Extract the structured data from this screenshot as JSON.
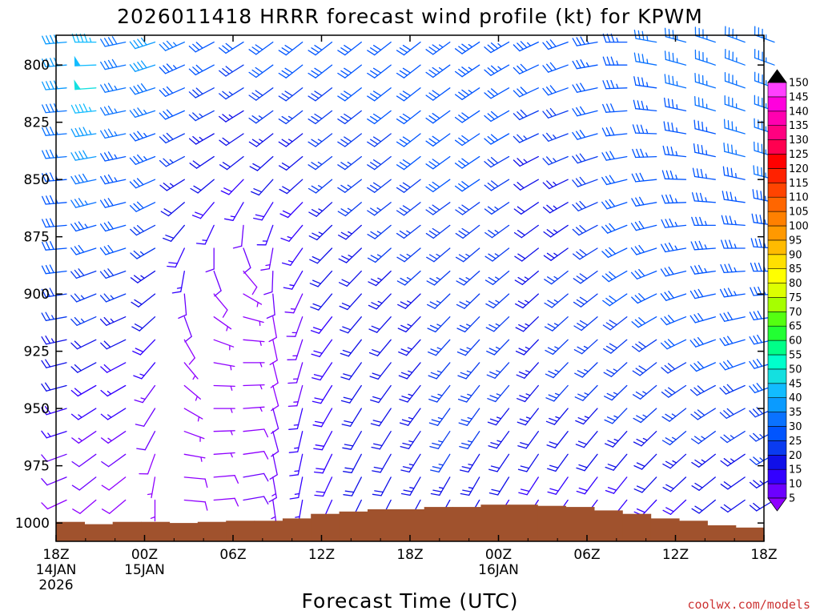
{
  "chart_data": {
    "type": "wind_barb_profile",
    "title": "2026011418 HRRR forecast wind profile (kt) for KPWM",
    "xlabel": "Forecast Time (UTC)",
    "ylabel": "",
    "credit": "coolwx.com/models",
    "y_axis": {
      "inverted": true,
      "range": [
        1008,
        787
      ],
      "ticks": [
        800,
        825,
        850,
        875,
        900,
        925,
        950,
        975,
        1000
      ],
      "tick_labels": [
        "800",
        "825",
        "850",
        "875",
        "900",
        "925",
        "950",
        "975",
        "1000"
      ]
    },
    "x_axis": {
      "range_hours": [
        0,
        48
      ],
      "ticks": [
        {
          "hour": 0,
          "lines": [
            "18Z",
            "14JAN",
            "2026"
          ]
        },
        {
          "hour": 6,
          "lines": [
            "00Z",
            "15JAN"
          ]
        },
        {
          "hour": 12,
          "lines": [
            "06Z"
          ]
        },
        {
          "hour": 18,
          "lines": [
            "12Z"
          ]
        },
        {
          "hour": 24,
          "lines": [
            "18Z"
          ]
        },
        {
          "hour": 30,
          "lines": [
            "00Z",
            "16JAN"
          ]
        },
        {
          "hour": 36,
          "lines": [
            "06Z"
          ]
        },
        {
          "hour": 42,
          "lines": [
            "12Z"
          ]
        },
        {
          "hour": 48,
          "lines": [
            "18Z"
          ]
        }
      ]
    },
    "colorbar": {
      "levels": [
        5,
        10,
        15,
        20,
        25,
        30,
        35,
        40,
        45,
        50,
        55,
        60,
        65,
        70,
        75,
        80,
        85,
        90,
        95,
        100,
        105,
        110,
        115,
        120,
        125,
        130,
        135,
        140,
        145,
        150
      ],
      "colors": [
        "#8f00ff",
        "#6c00ff",
        "#3300ff",
        "#1010e8",
        "#0a3bf0",
        "#0055ff",
        "#0a72ff",
        "#0a9bff",
        "#12bcff",
        "#14e0e0",
        "#00ffcc",
        "#00ff88",
        "#22ff33",
        "#55ff11",
        "#a6ff00",
        "#ddff00",
        "#ffff00",
        "#ffe000",
        "#ffbb00",
        "#ff9900",
        "#ff8000",
        "#ff6600",
        "#ff4400",
        "#ff2200",
        "#ff0000",
        "#ff0050",
        "#ff0080",
        "#ff00b0",
        "#ff00dd",
        "#ff40ff"
      ]
    },
    "series": {
      "times_hours": [
        0,
        2,
        4,
        6,
        8,
        10,
        12,
        14,
        16,
        18,
        20,
        22,
        24,
        26,
        28,
        30,
        32,
        34,
        36,
        38,
        40,
        42,
        44,
        46,
        48
      ],
      "levels_hpa": [
        790,
        800,
        810,
        820,
        830,
        840,
        850,
        860,
        870,
        880,
        890,
        900,
        910,
        920,
        930,
        940,
        950,
        960,
        970,
        980,
        990
      ],
      "wind_speed_kt_by_time": [
        [
          42,
          42,
          40,
          38,
          36,
          35,
          34,
          33,
          32,
          31,
          30,
          28,
          26,
          24,
          22,
          20,
          18,
          15,
          12,
          10,
          8
        ],
        [
          46,
          48,
          50,
          47,
          44,
          41,
          38,
          35,
          33,
          31,
          29,
          27,
          25,
          22,
          20,
          18,
          16,
          14,
          12,
          10,
          8
        ],
        [
          38,
          38,
          37,
          36,
          35,
          34,
          33,
          32,
          31,
          30,
          28,
          26,
          23,
          21,
          19,
          17,
          15,
          13,
          11,
          9,
          8
        ],
        [
          40,
          40,
          38,
          36,
          34,
          33,
          32,
          30,
          28,
          26,
          24,
          22,
          20,
          18,
          16,
          14,
          12,
          10,
          8,
          7,
          6
        ],
        [
          35,
          34,
          32,
          30,
          28,
          26,
          24,
          22,
          20,
          18,
          15,
          12,
          10,
          8,
          7,
          6,
          6,
          6,
          7,
          8,
          9
        ],
        [
          32,
          30,
          28,
          26,
          24,
          22,
          20,
          18,
          15,
          12,
          10,
          8,
          7,
          6,
          6,
          5,
          5,
          6,
          7,
          8,
          9
        ],
        [
          30,
          28,
          26,
          24,
          22,
          20,
          18,
          15,
          12,
          10,
          8,
          7,
          6,
          6,
          6,
          6,
          7,
          8,
          9,
          10,
          10
        ],
        [
          31,
          30,
          28,
          26,
          24,
          22,
          20,
          18,
          16,
          14,
          12,
          10,
          9,
          8,
          8,
          9,
          10,
          11,
          12,
          13,
          14
        ],
        [
          30,
          30,
          28,
          26,
          24,
          22,
          20,
          18,
          17,
          16,
          15,
          14,
          13,
          13,
          13,
          14,
          15,
          16,
          16,
          16,
          16
        ],
        [
          30,
          30,
          29,
          28,
          27,
          26,
          25,
          24,
          23,
          22,
          21,
          20,
          19,
          18,
          18,
          18,
          18,
          18,
          18,
          18,
          18
        ],
        [
          31,
          30,
          30,
          29,
          28,
          27,
          26,
          25,
          24,
          23,
          22,
          21,
          20,
          20,
          20,
          20,
          20,
          20,
          20,
          20,
          20
        ],
        [
          31,
          31,
          30,
          30,
          29,
          28,
          28,
          27,
          26,
          25,
          24,
          23,
          22,
          22,
          22,
          22,
          22,
          22,
          22,
          22,
          22
        ],
        [
          32,
          32,
          31,
          31,
          30,
          30,
          29,
          28,
          27,
          26,
          25,
          24,
          24,
          24,
          24,
          24,
          24,
          24,
          24,
          24,
          24
        ],
        [
          33,
          33,
          32,
          32,
          31,
          31,
          30,
          29,
          28,
          27,
          26,
          25,
          25,
          25,
          25,
          25,
          25,
          25,
          25,
          24,
          24
        ],
        [
          34,
          34,
          33,
          32,
          31,
          31,
          30,
          29,
          28,
          27,
          26,
          25,
          25,
          25,
          25,
          25,
          25,
          25,
          24,
          23,
          22
        ],
        [
          34,
          33,
          32,
          31,
          30,
          29,
          28,
          27,
          26,
          25,
          25,
          25,
          25,
          25,
          25,
          25,
          24,
          23,
          22,
          20,
          18
        ],
        [
          33,
          32,
          30,
          28,
          26,
          24,
          22,
          22,
          22,
          22,
          23,
          24,
          24,
          24,
          24,
          24,
          23,
          22,
          20,
          18,
          16
        ],
        [
          32,
          31,
          30,
          28,
          26,
          25,
          24,
          24,
          24,
          24,
          25,
          25,
          25,
          25,
          25,
          25,
          24,
          22,
          20,
          18,
          16
        ],
        [
          33,
          33,
          32,
          31,
          30,
          29,
          28,
          28,
          28,
          28,
          28,
          28,
          28,
          27,
          26,
          25,
          24,
          22,
          20,
          18,
          16
        ],
        [
          34,
          34,
          33,
          32,
          32,
          31,
          31,
          30,
          30,
          30,
          30,
          30,
          29,
          28,
          27,
          26,
          25,
          23,
          21,
          19,
          17
        ],
        [
          35,
          35,
          34,
          34,
          33,
          33,
          32,
          32,
          32,
          32,
          31,
          31,
          30,
          29,
          28,
          27,
          26,
          24,
          22,
          20,
          18
        ],
        [
          35,
          35,
          35,
          34,
          34,
          34,
          33,
          33,
          33,
          33,
          32,
          32,
          31,
          30,
          29,
          28,
          27,
          25,
          23,
          21,
          19
        ],
        [
          36,
          35,
          35,
          35,
          34,
          34,
          34,
          34,
          34,
          33,
          33,
          32,
          32,
          31,
          30,
          29,
          28,
          26,
          24,
          22,
          20
        ],
        [
          36,
          36,
          35,
          35,
          35,
          35,
          34,
          34,
          34,
          34,
          33,
          33,
          32,
          31,
          30,
          29,
          28,
          26,
          24,
          22,
          20
        ],
        [
          36,
          36,
          36,
          35,
          35,
          35,
          35,
          34,
          34,
          34,
          33,
          33,
          32,
          32,
          31,
          30,
          29,
          27,
          25,
          23,
          21
        ]
      ],
      "wind_direction_deg_by_time": [
        [
          265,
          265,
          265,
          265,
          265,
          265,
          265,
          265,
          265,
          265,
          263,
          262,
          260,
          258,
          256,
          255,
          253,
          252,
          250,
          248,
          245
        ],
        [
          270,
          268,
          266,
          264,
          262,
          260,
          258,
          256,
          254,
          252,
          250,
          248,
          246,
          244,
          242,
          240,
          238,
          236,
          234,
          232,
          230
        ],
        [
          258,
          258,
          258,
          258,
          258,
          258,
          258,
          256,
          254,
          252,
          250,
          248,
          246,
          244,
          242,
          240,
          238,
          236,
          234,
          232,
          230
        ],
        [
          252,
          252,
          252,
          252,
          250,
          248,
          246,
          244,
          242,
          240,
          236,
          232,
          228,
          224,
          220,
          216,
          212,
          208,
          200,
          190,
          180
        ],
        [
          246,
          246,
          246,
          246,
          244,
          242,
          238,
          230,
          220,
          205,
          190,
          175,
          160,
          150,
          140,
          130,
          120,
          110,
          100,
          95,
          95
        ],
        [
          242,
          242,
          242,
          242,
          240,
          236,
          230,
          220,
          205,
          180,
          160,
          140,
          125,
          110,
          100,
          92,
          90,
          88,
          86,
          85,
          85
        ],
        [
          238,
          238,
          238,
          238,
          236,
          232,
          224,
          210,
          185,
          160,
          140,
          120,
          105,
          95,
          90,
          88,
          86,
          84,
          82,
          80,
          80
        ],
        [
          234,
          234,
          234,
          234,
          232,
          228,
          222,
          212,
          200,
          190,
          182,
          175,
          170,
          168,
          166,
          165,
          165,
          165,
          168,
          170,
          172
        ],
        [
          232,
          232,
          232,
          232,
          232,
          230,
          228,
          224,
          220,
          215,
          210,
          205,
          200,
          198,
          196,
          195,
          194,
          193,
          192,
          191,
          190
        ],
        [
          232,
          232,
          232,
          232,
          232,
          232,
          230,
          228,
          226,
          224,
          222,
          220,
          218,
          216,
          214,
          212,
          210,
          208,
          206,
          205,
          204
        ],
        [
          232,
          232,
          232,
          232,
          232,
          232,
          232,
          230,
          228,
          226,
          224,
          222,
          220,
          218,
          216,
          214,
          212,
          210,
          208,
          207,
          206
        ],
        [
          232,
          232,
          232,
          232,
          232,
          232,
          232,
          232,
          230,
          228,
          226,
          224,
          222,
          220,
          218,
          216,
          214,
          212,
          210,
          208,
          207
        ],
        [
          232,
          232,
          232,
          232,
          232,
          232,
          232,
          232,
          232,
          230,
          228,
          226,
          224,
          222,
          220,
          218,
          216,
          214,
          212,
          210,
          208
        ],
        [
          234,
          234,
          234,
          234,
          234,
          234,
          234,
          234,
          232,
          230,
          228,
          226,
          224,
          222,
          220,
          218,
          216,
          214,
          212,
          210,
          209
        ],
        [
          236,
          236,
          236,
          236,
          236,
          236,
          236,
          234,
          232,
          230,
          228,
          226,
          224,
          222,
          220,
          218,
          216,
          214,
          212,
          210,
          210
        ],
        [
          240,
          240,
          240,
          240,
          240,
          240,
          238,
          236,
          234,
          232,
          230,
          228,
          226,
          224,
          222,
          220,
          218,
          216,
          214,
          212,
          212
        ],
        [
          245,
          245,
          245,
          245,
          245,
          243,
          240,
          236,
          234,
          232,
          230,
          228,
          226,
          224,
          222,
          220,
          218,
          216,
          214,
          213,
          213
        ],
        [
          250,
          250,
          250,
          250,
          249,
          247,
          244,
          240,
          236,
          234,
          232,
          230,
          228,
          226,
          224,
          222,
          220,
          218,
          216,
          215,
          215
        ],
        [
          260,
          260,
          258,
          256,
          254,
          252,
          250,
          246,
          242,
          238,
          234,
          232,
          230,
          228,
          226,
          224,
          222,
          220,
          218,
          217,
          217
        ],
        [
          270,
          270,
          268,
          266,
          264,
          260,
          256,
          252,
          248,
          244,
          240,
          236,
          232,
          230,
          228,
          226,
          224,
          222,
          220,
          219,
          219
        ],
        [
          280,
          280,
          278,
          276,
          272,
          268,
          264,
          260,
          256,
          252,
          248,
          244,
          240,
          236,
          232,
          230,
          228,
          226,
          224,
          223,
          223
        ],
        [
          285,
          285,
          284,
          282,
          280,
          276,
          272,
          268,
          264,
          260,
          256,
          252,
          248,
          244,
          240,
          236,
          232,
          230,
          228,
          227,
          227
        ],
        [
          288,
          288,
          287,
          286,
          284,
          282,
          278,
          274,
          270,
          266,
          262,
          258,
          254,
          250,
          246,
          242,
          238,
          234,
          232,
          231,
          231
        ],
        [
          290,
          290,
          289,
          288,
          286,
          284,
          282,
          278,
          274,
          270,
          266,
          262,
          258,
          254,
          250,
          246,
          242,
          238,
          236,
          235,
          235
        ],
        [
          290,
          290,
          290,
          289,
          288,
          287,
          285,
          282,
          278,
          274,
          270,
          266,
          262,
          258,
          254,
          250,
          246,
          242,
          240,
          239,
          239
        ]
      ],
      "surface_pressure_hpa": [
        999.5,
        1000.5,
        999.5,
        999.5,
        1000,
        999.5,
        999,
        999,
        998,
        996,
        995,
        994,
        994,
        993,
        993,
        992,
        992,
        992.5,
        993,
        994.5,
        996,
        998,
        999,
        1001,
        1002
      ]
    }
  }
}
